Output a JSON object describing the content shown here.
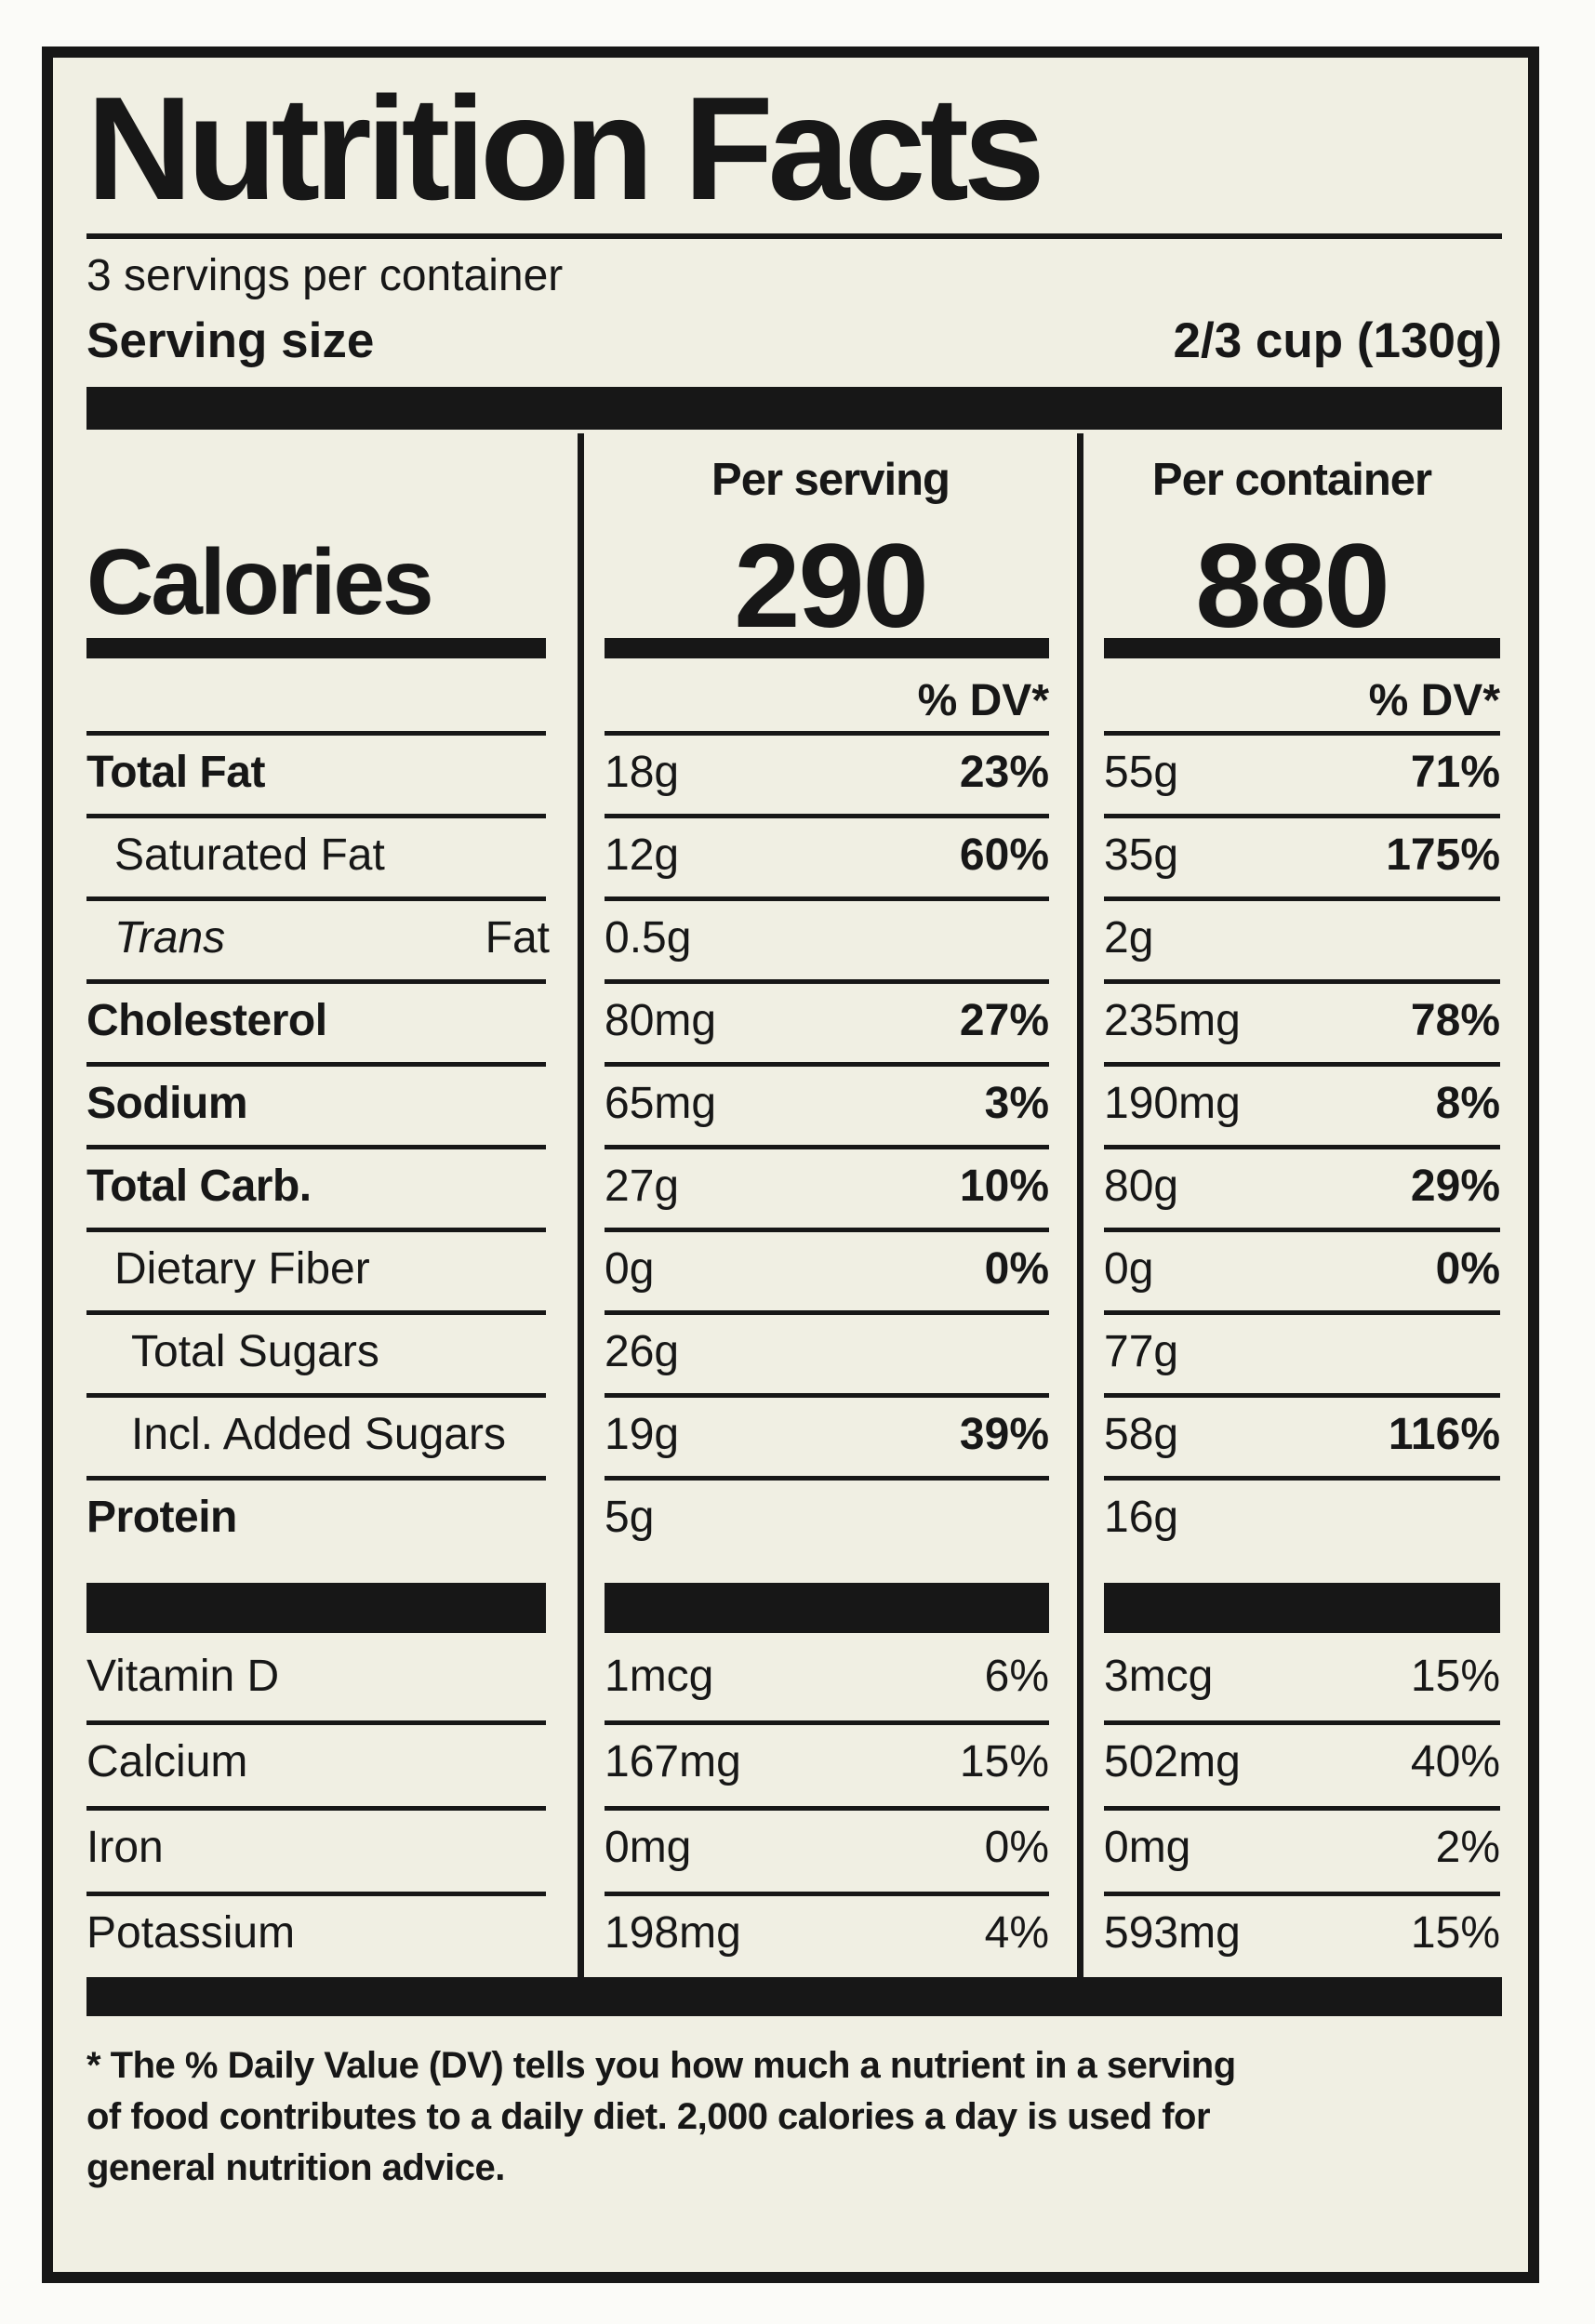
{
  "label": {
    "title": "Nutrition Facts",
    "servings_per_container": "3 servings per container",
    "serving_size": {
      "label": "Serving size",
      "value": "2/3 cup (130g)"
    },
    "columns": {
      "per_serving": "Per serving",
      "per_container": "Per container"
    },
    "calories": {
      "label": "Calories",
      "per_serving": "290",
      "per_container": "880"
    },
    "dv_header": "% DV*",
    "rows": [
      {
        "name_parts": [
          {
            "text": "Total Fat",
            "italic": false
          }
        ],
        "bold": true,
        "indent": 0,
        "ps_amt": "18g",
        "ps_dv": "23%",
        "pc_amt": "55g",
        "pc_dv": "71%"
      },
      {
        "name_parts": [
          {
            "text": "Saturated Fat",
            "italic": false
          }
        ],
        "bold": false,
        "indent": 1,
        "ps_amt": "12g",
        "ps_dv": "60%",
        "pc_amt": "35g",
        "pc_dv": "175%"
      },
      {
        "name_parts": [
          {
            "text": "Trans",
            "italic": true
          },
          {
            "text": " Fat",
            "italic": false
          }
        ],
        "bold": false,
        "indent": 1,
        "ps_amt": "0.5g",
        "ps_dv": "",
        "pc_amt": "2g",
        "pc_dv": ""
      },
      {
        "name_parts": [
          {
            "text": "Cholesterol",
            "italic": false
          }
        ],
        "bold": true,
        "indent": 0,
        "ps_amt": "80mg",
        "ps_dv": "27%",
        "pc_amt": "235mg",
        "pc_dv": "78%"
      },
      {
        "name_parts": [
          {
            "text": "Sodium",
            "italic": false
          }
        ],
        "bold": true,
        "indent": 0,
        "ps_amt": "65mg",
        "ps_dv": "3%",
        "pc_amt": "190mg",
        "pc_dv": "8%"
      },
      {
        "name_parts": [
          {
            "text": "Total Carb.",
            "italic": false
          }
        ],
        "bold": true,
        "indent": 0,
        "ps_amt": "27g",
        "ps_dv": "10%",
        "pc_amt": "80g",
        "pc_dv": "29%"
      },
      {
        "name_parts": [
          {
            "text": "Dietary Fiber",
            "italic": false
          }
        ],
        "bold": false,
        "indent": 1,
        "ps_amt": "0g",
        "ps_dv": "0%",
        "pc_amt": "0g",
        "pc_dv": "0%"
      },
      {
        "name_parts": [
          {
            "text": "Total Sugars",
            "italic": false
          }
        ],
        "bold": false,
        "indent": 2,
        "ps_amt": "26g",
        "ps_dv": "",
        "pc_amt": "77g",
        "pc_dv": ""
      },
      {
        "name_parts": [
          {
            "text": "Incl. Added Sugars",
            "italic": false
          }
        ],
        "bold": false,
        "indent": 2,
        "ps_amt": "19g",
        "ps_dv": "39%",
        "pc_amt": "58g",
        "pc_dv": "116%"
      },
      {
        "name_parts": [
          {
            "text": "Protein",
            "italic": false
          }
        ],
        "bold": true,
        "indent": 0,
        "ps_amt": "5g",
        "ps_dv": "",
        "pc_amt": "16g",
        "pc_dv": ""
      }
    ],
    "vitamins": [
      {
        "name": "Vitamin D",
        "ps_amt": "1mcg",
        "ps_dv": "6%",
        "pc_amt": "3mcg",
        "pc_dv": "15%"
      },
      {
        "name": "Calcium",
        "ps_amt": "167mg",
        "ps_dv": "15%",
        "pc_amt": "502mg",
        "pc_dv": "40%"
      },
      {
        "name": "Iron",
        "ps_amt": "0mg",
        "ps_dv": "0%",
        "pc_amt": "0mg",
        "pc_dv": "2%"
      },
      {
        "name": "Potassium",
        "ps_amt": "198mg",
        "ps_dv": "4%",
        "pc_amt": "593mg",
        "pc_dv": "15%"
      }
    ],
    "footnote": "* The % Daily Value (DV) tells you how much a nutrient in a serving\nof food contributes to a daily diet. 2,000 calories a day is used for\ngeneral nutrition advice.",
    "colors": {
      "ink": "#171717",
      "paper": "#f0efe3"
    }
  }
}
